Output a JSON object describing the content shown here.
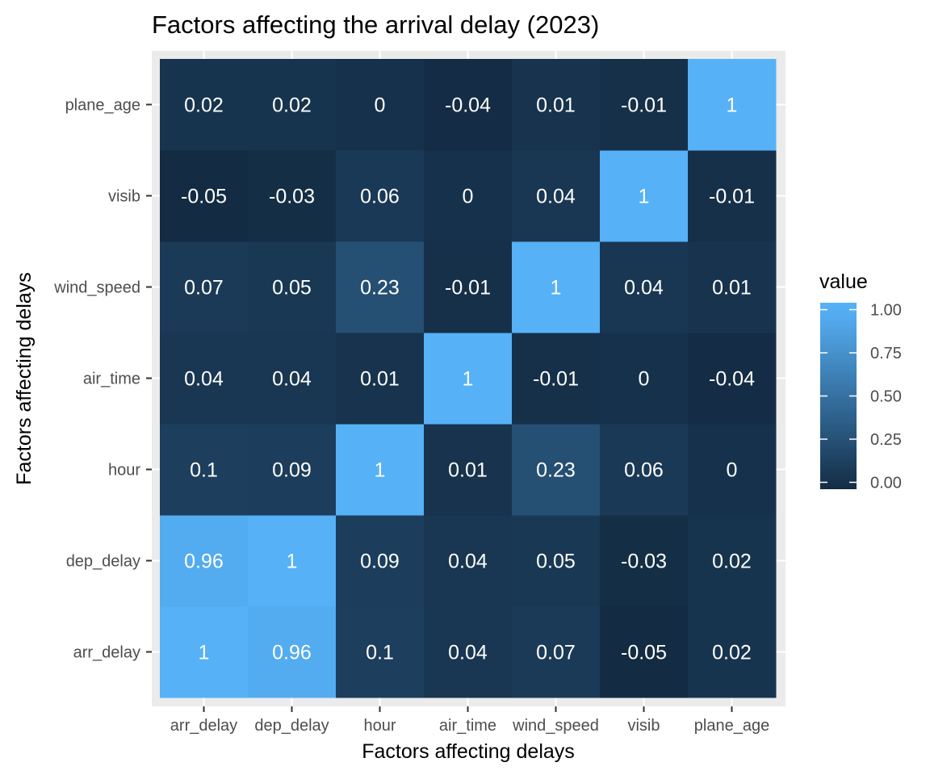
{
  "chart_data": {
    "type": "heatmap",
    "title": "Factors affecting the arrival delay (2023)",
    "xlabel": "Factors affecting delays",
    "ylabel": "Factors affecting delays",
    "x_categories": [
      "arr_delay",
      "dep_delay",
      "hour",
      "air_time",
      "wind_speed",
      "visib",
      "plane_age"
    ],
    "y_categories": [
      "arr_delay",
      "dep_delay",
      "hour",
      "air_time",
      "wind_speed",
      "visib",
      "plane_age"
    ],
    "values": [
      [
        1,
        0.96,
        0.1,
        0.04,
        0.07,
        -0.05,
        0.02
      ],
      [
        0.96,
        1,
        0.09,
        0.04,
        0.05,
        -0.03,
        0.02
      ],
      [
        0.1,
        0.09,
        1,
        0.01,
        0.23,
        0.06,
        0
      ],
      [
        0.04,
        0.04,
        0.01,
        1,
        -0.01,
        0,
        -0.04
      ],
      [
        0.07,
        0.05,
        0.23,
        -0.01,
        1,
        0.04,
        0.01
      ],
      [
        -0.05,
        -0.03,
        0.06,
        0,
        0.04,
        1,
        -0.01
      ],
      [
        0.02,
        0.02,
        0,
        -0.04,
        0.01,
        -0.01,
        1
      ]
    ],
    "value_range": [
      -0.05,
      1
    ],
    "legend": {
      "title": "value",
      "position": "right",
      "breaks": [
        0,
        0.25,
        0.5,
        0.75,
        1
      ],
      "labels": [
        "0.00",
        "0.25",
        "0.50",
        "0.75",
        "1.00"
      ]
    },
    "colors": {
      "low": "#132b43",
      "high": "#56b1f7",
      "panel_background": "#ebebeb",
      "grid": "#ffffff",
      "cell_text": "#ffffff"
    },
    "grid": true
  }
}
